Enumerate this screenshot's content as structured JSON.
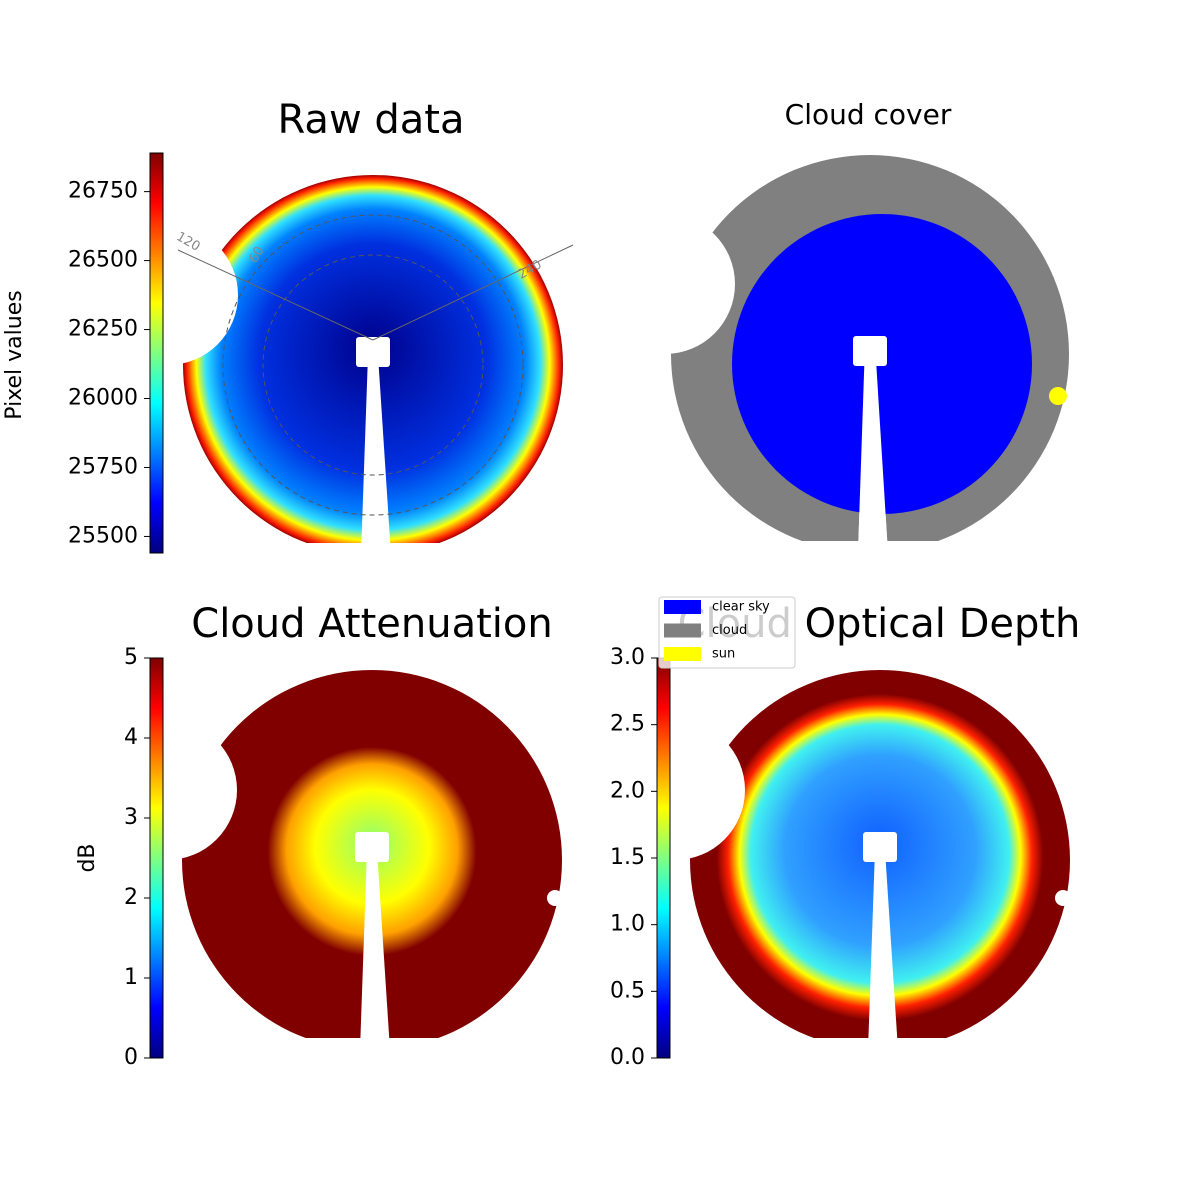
{
  "chart_data": [
    {
      "type": "image",
      "title": "Raw data",
      "colormap": "jet",
      "colorbar_label": "Pixel values",
      "clim": [
        25440,
        26890
      ],
      "cticks": [
        25500,
        25750,
        26000,
        26250,
        26500,
        26750
      ],
      "annotations": [
        "120",
        "60",
        "240"
      ]
    },
    {
      "type": "image",
      "title": "Cloud cover",
      "series": [
        {
          "name": "clear sky",
          "color": "#0000ff"
        },
        {
          "name": "cloud",
          "color": "#808080"
        },
        {
          "name": "sun",
          "color": "#ffff00"
        }
      ]
    },
    {
      "type": "image",
      "title": "Cloud Attenuation",
      "colormap": "jet",
      "colorbar_label": "dB",
      "clim": [
        0,
        5
      ],
      "cticks": [
        0,
        1,
        2,
        3,
        4,
        5
      ]
    },
    {
      "type": "image",
      "title": "Cloud Optical Depth",
      "colormap": "jet",
      "clim": [
        0,
        3
      ],
      "cticks": [
        {
          "value": 0,
          "label": "0.0"
        },
        {
          "value": 0.5,
          "label": "0.5"
        },
        {
          "value": 1,
          "label": "1.0"
        },
        {
          "value": 1.5,
          "label": "1.5"
        },
        {
          "value": 2,
          "label": "2.0"
        },
        {
          "value": 2.5,
          "label": "2.5"
        },
        {
          "value": 3,
          "label": "3.0"
        }
      ]
    }
  ]
}
